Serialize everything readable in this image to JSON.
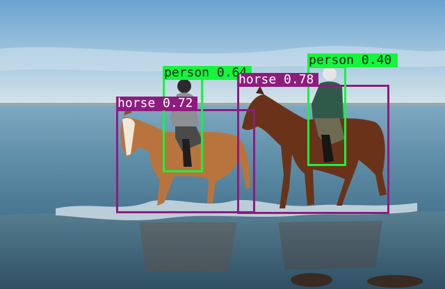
{
  "image": {
    "description_tag": "object-detection-result",
    "colors": {
      "horse": "#8e1b7e",
      "person": "#14f53c",
      "horse_label_text": "#ffffff",
      "person_label_text": "#1f1f1f"
    }
  },
  "detections": [
    {
      "name": "horse-detection-left",
      "label": "horse 0.72",
      "class": "horse"
    },
    {
      "name": "person-detection-left",
      "label": "person 0.64",
      "class": "person"
    },
    {
      "name": "horse-detection-right",
      "label": "horse 0.78",
      "class": "horse"
    },
    {
      "name": "person-detection-right",
      "label": "person 0.40",
      "class": "person"
    }
  ]
}
